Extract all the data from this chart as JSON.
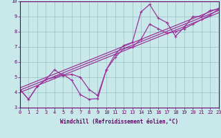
{
  "xlabel": "Windchill (Refroidissement éolien,°C)",
  "bg_color": "#c8e8ea",
  "grid_color": "#9dbfc2",
  "line_color": "#993399",
  "spine_color": "#660066",
  "tick_color": "#660066",
  "label_color": "#660066",
  "xlim": [
    0,
    23
  ],
  "ylim": [
    3,
    10
  ],
  "xticks": [
    0,
    1,
    2,
    3,
    4,
    5,
    6,
    7,
    8,
    9,
    10,
    11,
    12,
    13,
    14,
    15,
    16,
    17,
    18,
    19,
    20,
    21,
    22,
    23
  ],
  "yticks": [
    3,
    4,
    5,
    6,
    7,
    8,
    9,
    10
  ],
  "data_x": [
    0,
    1,
    2,
    3,
    4,
    5,
    6,
    7,
    8,
    9,
    10,
    11,
    12,
    13,
    14,
    15,
    16,
    17,
    18,
    19,
    20,
    21,
    22,
    23
  ],
  "data_y1": [
    4.2,
    3.55,
    4.4,
    4.85,
    5.0,
    5.2,
    4.8,
    3.85,
    3.55,
    3.6,
    5.5,
    6.5,
    7.1,
    7.3,
    9.3,
    9.8,
    8.9,
    8.6,
    7.7,
    8.3,
    9.0,
    9.0,
    9.4,
    9.5
  ],
  "data_y2": [
    4.2,
    3.55,
    4.4,
    4.85,
    5.5,
    5.1,
    5.2,
    5.0,
    4.2,
    3.8,
    5.5,
    6.3,
    6.9,
    7.0,
    7.5,
    8.5,
    8.2,
    7.9,
    8.0,
    8.2,
    8.5,
    8.8,
    9.1,
    9.5
  ],
  "trend_lines": [
    {
      "x0": 0,
      "y0": 4.0,
      "x1": 23,
      "y1": 9.25
    },
    {
      "x0": 0,
      "y0": 4.15,
      "x1": 23,
      "y1": 9.4
    },
    {
      "x0": 0,
      "y0": 4.3,
      "x1": 23,
      "y1": 9.55
    }
  ],
  "linewidth": 0.9,
  "markersize": 3.5,
  "tick_fontsize": 5.0,
  "xlabel_fontsize": 5.5
}
